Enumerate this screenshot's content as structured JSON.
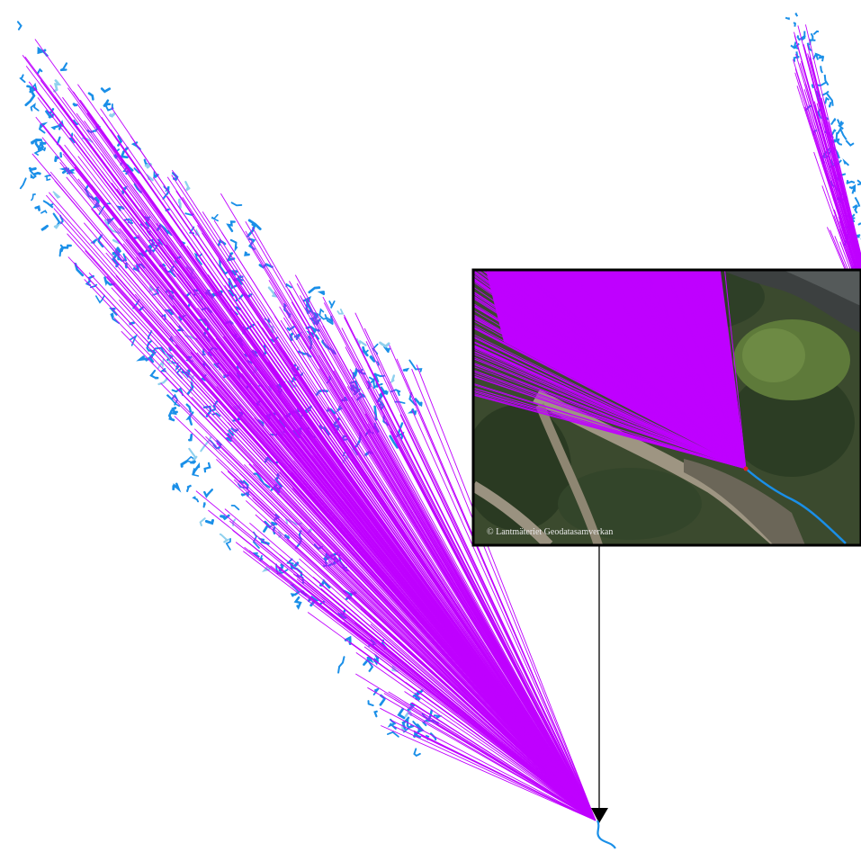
{
  "inset": {
    "copyright": "© Lantmäteriet Geodatasamverkan"
  },
  "colors": {
    "flow_lines": "#bf00ff",
    "streams": "#1a8fe8",
    "streams_light": "#8fd0ee",
    "outlet_marker": "#000000",
    "outlet_point": "#e0202a"
  },
  "icons": {
    "outlet_marker": "triangle-down-icon"
  }
}
